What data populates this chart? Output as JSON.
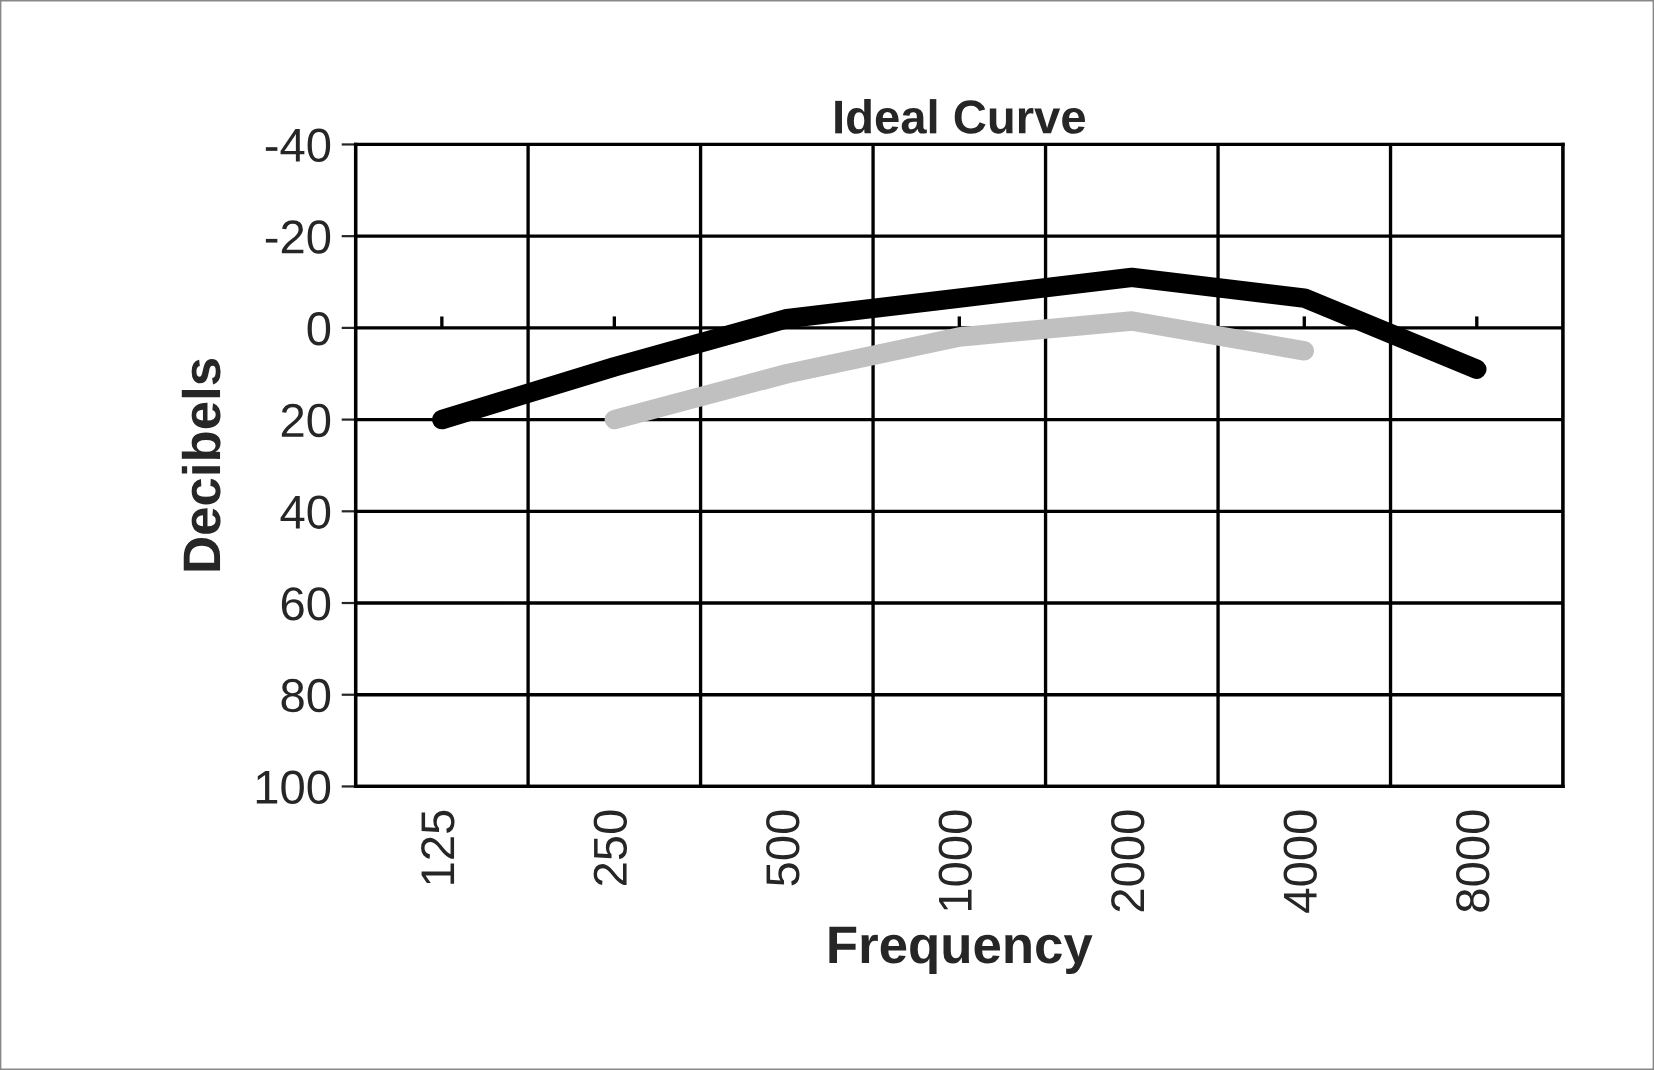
{
  "chart_data": {
    "type": "line",
    "title": "Ideal Curve",
    "xlabel": "Frequency",
    "ylabel": "Decibels",
    "categories": [
      "125",
      "250",
      "500",
      "1000",
      "2000",
      "4000",
      "8000"
    ],
    "series": [
      {
        "color": "#000000",
        "values": [
          20,
          8.5,
          -2,
          -6.5,
          -11,
          -6.5,
          9
        ]
      },
      {
        "color": "#c0c0c0",
        "values": [
          null,
          20,
          10,
          2,
          -1.5,
          5,
          null
        ]
      }
    ],
    "ylim": [
      100,
      -40
    ],
    "yticks": [
      -40,
      -20,
      0,
      20,
      40,
      60,
      80,
      100
    ],
    "grid": true,
    "legend": false,
    "line_style": "solid",
    "marker": "none"
  }
}
